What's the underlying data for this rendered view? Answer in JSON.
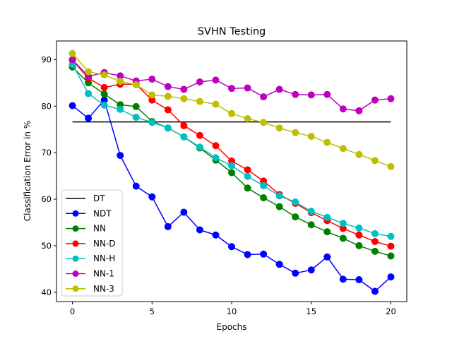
{
  "chart_data": {
    "type": "line",
    "title": "SVHN Testing",
    "xlabel": "Epochs",
    "ylabel": "Classification Error in %",
    "xlim": [
      -1,
      21
    ],
    "ylim": [
      38,
      94
    ],
    "xticks": [
      0,
      5,
      10,
      15,
      20
    ],
    "xtick_labels": [
      "0",
      "5",
      "10",
      "15",
      "20"
    ],
    "yticks": [
      40,
      50,
      60,
      70,
      80,
      90
    ],
    "ytick_labels": [
      "40",
      "50",
      "60",
      "70",
      "80",
      "90"
    ],
    "grid": false,
    "legend_position": "lower-left",
    "x": [
      0,
      1,
      2,
      3,
      4,
      5,
      6,
      7,
      8,
      9,
      10,
      11,
      12,
      13,
      14,
      15,
      16,
      17,
      18,
      19,
      20
    ],
    "series": [
      {
        "name": "DT",
        "color": "#000000",
        "marker": "none",
        "x": [
          0,
          20
        ],
        "values": [
          76.6,
          76.6
        ]
      },
      {
        "name": "NDT",
        "color": "#0000ff",
        "marker": "circle",
        "values": [
          80.1,
          77.4,
          81.3,
          69.4,
          62.8,
          60.5,
          54.1,
          57.2,
          53.4,
          52.3,
          49.8,
          48.1,
          48.2,
          46.0,
          44.1,
          44.8,
          47.6,
          42.8,
          42.7,
          40.2,
          43.3
        ]
      },
      {
        "name": "NN",
        "color": "#008000",
        "marker": "circle",
        "values": [
          88.4,
          85.0,
          82.6,
          80.3,
          79.9,
          76.7,
          75.3,
          73.4,
          71.0,
          68.4,
          65.7,
          62.4,
          60.3,
          58.4,
          56.2,
          54.5,
          53.0,
          51.6,
          50.0,
          48.8,
          47.8
        ]
      },
      {
        "name": "NN-D",
        "color": "#ff0000",
        "marker": "circle",
        "values": [
          89.9,
          86.0,
          84.0,
          84.7,
          84.7,
          81.3,
          79.2,
          75.8,
          73.7,
          71.5,
          68.2,
          66.3,
          63.9,
          61.0,
          59.1,
          57.1,
          55.4,
          53.7,
          52.3,
          50.9,
          49.9
        ]
      },
      {
        "name": "NN-H",
        "color": "#00bfbf",
        "marker": "circle",
        "values": [
          89.0,
          82.7,
          80.2,
          79.3,
          77.6,
          76.5,
          75.3,
          73.4,
          71.2,
          68.9,
          67.2,
          64.9,
          62.9,
          60.7,
          59.4,
          57.4,
          56.1,
          54.8,
          53.8,
          52.6,
          52.0
        ]
      },
      {
        "name": "NN-1",
        "color": "#bf00bf",
        "marker": "circle",
        "values": [
          90.0,
          86.4,
          87.2,
          86.5,
          85.4,
          85.8,
          84.2,
          83.6,
          85.2,
          85.6,
          83.8,
          83.9,
          82.0,
          83.6,
          82.5,
          82.4,
          82.5,
          79.4,
          79.0,
          81.3,
          81.6
        ]
      },
      {
        "name": "NN-3",
        "color": "#bfbf00",
        "marker": "circle",
        "values": [
          91.3,
          87.4,
          86.7,
          85.3,
          84.6,
          82.4,
          82.1,
          81.6,
          81.0,
          80.4,
          78.4,
          77.3,
          76.5,
          75.3,
          74.3,
          73.5,
          72.2,
          70.9,
          69.6,
          68.3,
          67.0
        ]
      }
    ]
  }
}
